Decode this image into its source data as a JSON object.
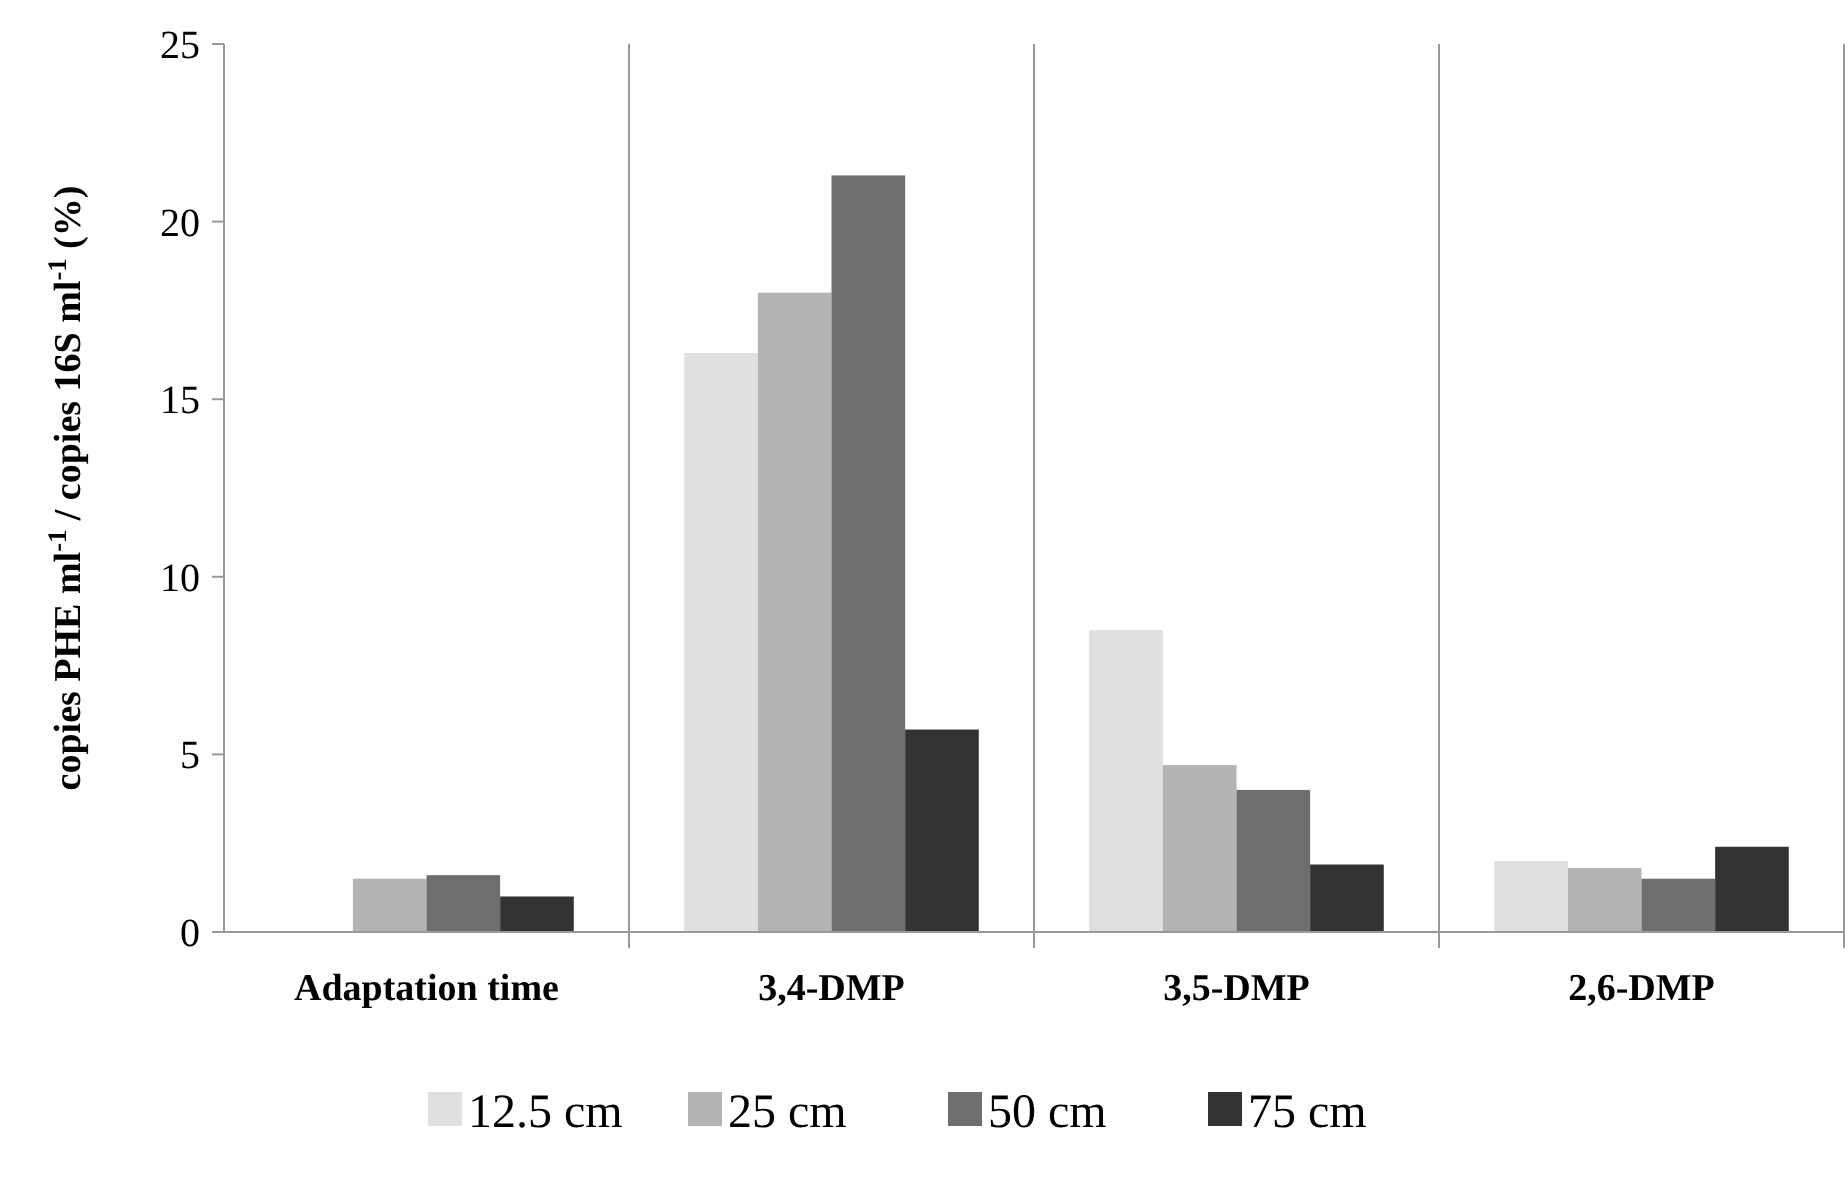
{
  "chart_data": {
    "type": "bar",
    "ylabel": "copies PHE ml$^{-1}$ / copies  16S ml$^{-1}$  (%)",
    "categories": [
      "Adaptation time",
      "3,4-DMP",
      "3,5-DMP",
      "2,6-DMP"
    ],
    "series": [
      {
        "name": "12.5 cm",
        "color": "#e0e0e0",
        "values": [
          0,
          16.3,
          8.5,
          2.0
        ]
      },
      {
        "name": "25 cm",
        "color": "#b3b3b3",
        "values": [
          1.5,
          18.0,
          4.7,
          1.8
        ]
      },
      {
        "name": "50 cm",
        "color": "#6e6e6e",
        "values": [
          1.6,
          21.3,
          4.0,
          1.5
        ]
      },
      {
        "name": "75 cm",
        "color": "#333333",
        "values": [
          1.0,
          5.7,
          1.9,
          2.4
        ]
      }
    ],
    "ylim": [
      0,
      25
    ],
    "yticks": [
      0,
      5,
      10,
      15,
      20,
      25
    ],
    "grid": false,
    "legend": "bottom"
  }
}
